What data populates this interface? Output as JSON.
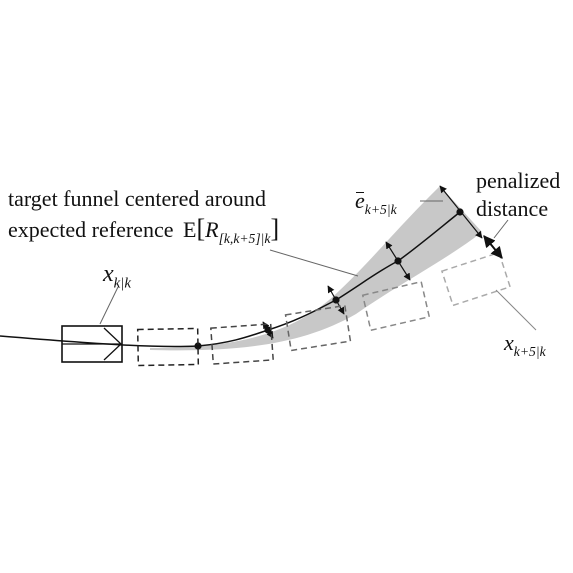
{
  "labels": {
    "funnel_line1": "target funnel centered around",
    "funnel_line2": "expected reference",
    "expect_op": "E",
    "ref_symbol": "R",
    "ref_subscript": "[k,k+5]|k",
    "state_current_symbol": "x",
    "state_current_subscript": "k|k",
    "error_symbol": "e",
    "error_subscript": "k+5|k",
    "penalized_line1": "penalized",
    "penalized_line2": "distance",
    "state_future_symbol": "x",
    "state_future_subscript": "k+5|k"
  },
  "colors": {
    "ink": "#111111",
    "funnel_fill": "#c8c8c8",
    "vehicle_pred_near": "#222222",
    "vehicle_pred_far": "#aaaaaa"
  }
}
